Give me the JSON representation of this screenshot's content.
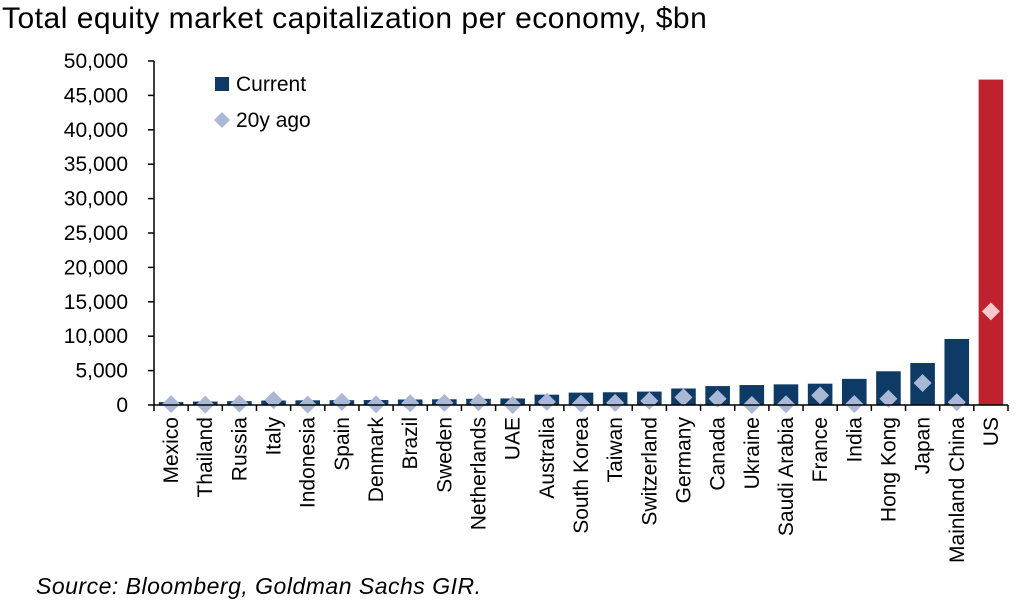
{
  "title": "Total equity market capitalization per economy, $bn",
  "source": "Source: Bloomberg, Goldman Sachs GIR.",
  "colors": {
    "current": "#0d3b66",
    "highlight": "#c0212e",
    "ago": "#a9b8d4",
    "ago_on_red": "#f4c9cc"
  },
  "chart_data": {
    "type": "bar",
    "title": "Total equity market capitalization per economy, $bn",
    "xlabel": "",
    "ylabel": "",
    "ylim": [
      0,
      50000
    ],
    "yticks": [
      0,
      5000,
      10000,
      15000,
      20000,
      25000,
      30000,
      35000,
      40000,
      45000,
      50000
    ],
    "ytick_labels": [
      "0",
      "5,000",
      "10,000",
      "15,000",
      "20,000",
      "25,000",
      "30,000",
      "35,000",
      "40,000",
      "45,000",
      "50,000"
    ],
    "legend_position": "top-left",
    "highlight_category": "US",
    "categories": [
      "Mexico",
      "Thailand",
      "Russia",
      "Italy",
      "Indonesia",
      "Spain",
      "Denmark",
      "Brazil",
      "Sweden",
      "Netherlands",
      "UAE",
      "Australia",
      "South Korea",
      "Taiwan",
      "Switzerland",
      "Germany",
      "Canada",
      "Ukraine",
      "Saudi Arabia",
      "France",
      "India",
      "Hong Kong",
      "Japan",
      "Mainland China",
      "US"
    ],
    "series": [
      {
        "name": "Current",
        "kind": "bar",
        "values": [
          420,
          500,
          560,
          650,
          680,
          700,
          720,
          800,
          830,
          900,
          950,
          1500,
          1800,
          1850,
          1950,
          2400,
          2750,
          2900,
          3000,
          3100,
          3800,
          4900,
          6100,
          9600,
          47300
        ]
      },
      {
        "name": "20y ago",
        "kind": "marker",
        "values": [
          120,
          50,
          200,
          700,
          50,
          450,
          100,
          250,
          300,
          400,
          0,
          450,
          200,
          300,
          600,
          1100,
          900,
          0,
          100,
          1400,
          150,
          900,
          3200,
          400,
          13600
        ]
      }
    ]
  }
}
